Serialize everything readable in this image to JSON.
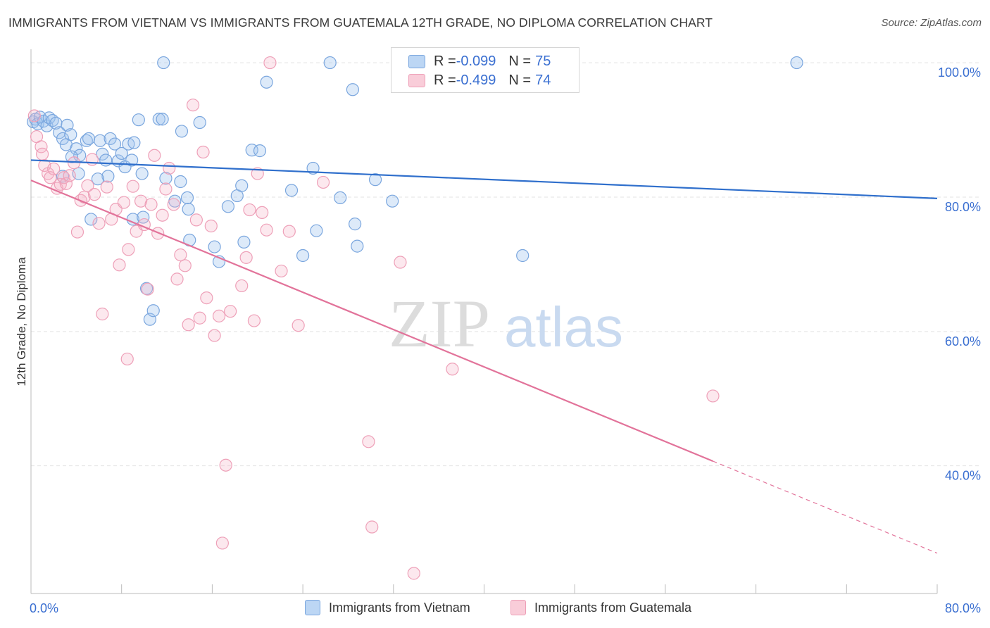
{
  "header": {
    "title": "IMMIGRANTS FROM VIETNAM VS IMMIGRANTS FROM GUATEMALA 12TH GRADE, NO DIPLOMA CORRELATION CHART",
    "source": "Source: ZipAtlas.com"
  },
  "watermark": {
    "zip": "ZIP",
    "atlas": "atlas"
  },
  "stats": [
    {
      "r_label": "R = ",
      "r_value": "-0.099",
      "n_label": "N = ",
      "n_value": "75",
      "color": "#9fc3ee"
    },
    {
      "r_label": "R = ",
      "r_value": "-0.499",
      "n_label": "N = ",
      "n_value": "74",
      "color": "#f5b3c6"
    }
  ],
  "colors": {
    "vietnam_fill": "rgba(158,195,238,0.35)",
    "vietnam_stroke": "#7aa6de",
    "vietnam_line": "#2f6fcc",
    "guatemala_fill": "rgba(245,179,198,0.30)",
    "guatemala_stroke": "#eea0b8",
    "guatemala_line": "#e2739a",
    "axis_text": "#3a6fd1",
    "grid": "#e3e3e3"
  },
  "chart_data": {
    "type": "scatter",
    "title": "IMMIGRANTS FROM VIETNAM VS IMMIGRANTS FROM GUATEMALA 12TH GRADE, NO DIPLOMA CORRELATION CHART",
    "xlabel": "",
    "ylabel": "12th Grade, No Diploma",
    "xlim": [
      0,
      80
    ],
    "ylim": [
      21,
      102
    ],
    "x_tick_labels": [
      "0.0%",
      "80.0%"
    ],
    "y_ticks": [
      40,
      60,
      80,
      100
    ],
    "y_tick_labels": [
      "40.0%",
      "60.0%",
      "80.0%",
      "100.0%"
    ],
    "grid": true,
    "legend": "bottom",
    "series": [
      {
        "name": "Immigrants from Vietnam",
        "trend": {
          "x": [
            0,
            80
          ],
          "y": [
            85.5,
            79.8
          ]
        },
        "points": [
          [
            0.2,
            91.2
          ],
          [
            0.4,
            91.6
          ],
          [
            0.6,
            90.9
          ],
          [
            0.8,
            91.9
          ],
          [
            1.1,
            91.3
          ],
          [
            1.4,
            90.6
          ],
          [
            1.6,
            91.8
          ],
          [
            1.9,
            91.4
          ],
          [
            2.2,
            91.0
          ],
          [
            2.5,
            89.6
          ],
          [
            2.8,
            88.7
          ],
          [
            3.2,
            90.7
          ],
          [
            3.5,
            89.3
          ],
          [
            3.1,
            87.8
          ],
          [
            4.0,
            87.2
          ],
          [
            4.3,
            86.2
          ],
          [
            4.9,
            88.4
          ],
          [
            5.1,
            88.7
          ],
          [
            5.3,
            76.7
          ],
          [
            4.2,
            83.5
          ],
          [
            6.3,
            86.4
          ],
          [
            6.1,
            88.4
          ],
          [
            6.8,
            83.1
          ],
          [
            7.0,
            88.7
          ],
          [
            7.4,
            87.9
          ],
          [
            7.7,
            85.4
          ],
          [
            8.0,
            86.5
          ],
          [
            8.3,
            84.5
          ],
          [
            8.6,
            87.9
          ],
          [
            8.9,
            85.5
          ],
          [
            9.1,
            88.1
          ],
          [
            9.0,
            76.7
          ],
          [
            9.5,
            91.5
          ],
          [
            9.8,
            83.5
          ],
          [
            9.9,
            77.0
          ],
          [
            10.2,
            66.4
          ],
          [
            10.5,
            61.8
          ],
          [
            10.8,
            63.1
          ],
          [
            11.3,
            91.6
          ],
          [
            11.6,
            91.6
          ],
          [
            11.9,
            82.8
          ],
          [
            11.7,
            100.0
          ],
          [
            12.7,
            79.4
          ],
          [
            13.3,
            89.8
          ],
          [
            13.2,
            82.3
          ],
          [
            13.8,
            79.9
          ],
          [
            13.9,
            78.2
          ],
          [
            14.0,
            73.6
          ],
          [
            14.9,
            91.1
          ],
          [
            16.2,
            72.6
          ],
          [
            16.6,
            70.4
          ],
          [
            17.4,
            78.6
          ],
          [
            18.2,
            80.2
          ],
          [
            18.6,
            81.7
          ],
          [
            18.8,
            73.3
          ],
          [
            19.5,
            87.0
          ],
          [
            20.2,
            86.9
          ],
          [
            20.8,
            97.1
          ],
          [
            23.0,
            81.0
          ],
          [
            24.0,
            71.3
          ],
          [
            24.9,
            84.3
          ],
          [
            25.2,
            75.0
          ],
          [
            26.4,
            100.0
          ],
          [
            27.3,
            79.9
          ],
          [
            28.4,
            96.0
          ],
          [
            28.6,
            76.0
          ],
          [
            28.8,
            72.7
          ],
          [
            30.4,
            82.6
          ],
          [
            31.9,
            79.4
          ],
          [
            43.4,
            71.3
          ],
          [
            67.6,
            100.0
          ],
          [
            2.8,
            83.1
          ],
          [
            5.9,
            82.7
          ],
          [
            3.6,
            86.0
          ],
          [
            6.6,
            85.5
          ]
        ]
      },
      {
        "name": "Immigrants from Guatemala",
        "trend": {
          "x": [
            0,
            60.2
          ],
          "y": [
            82.5,
            40.7
          ]
        },
        "trend_dashed": {
          "x": [
            60.2,
            80
          ],
          "y": [
            40.7,
            27.0
          ]
        },
        "points": [
          [
            0.3,
            92.1
          ],
          [
            0.5,
            89.0
          ],
          [
            0.9,
            87.5
          ],
          [
            1.2,
            84.7
          ],
          [
            1.5,
            83.5
          ],
          [
            1.7,
            82.9
          ],
          [
            2.0,
            84.2
          ],
          [
            2.3,
            81.3
          ],
          [
            2.6,
            81.9
          ],
          [
            2.9,
            82.9
          ],
          [
            3.1,
            82.0
          ],
          [
            3.4,
            83.2
          ],
          [
            3.8,
            85.1
          ],
          [
            4.1,
            74.8
          ],
          [
            4.4,
            79.5
          ],
          [
            4.7,
            80.0
          ],
          [
            5.0,
            81.7
          ],
          [
            5.4,
            85.6
          ],
          [
            5.6,
            80.4
          ],
          [
            6.0,
            76.1
          ],
          [
            6.3,
            62.6
          ],
          [
            6.7,
            81.5
          ],
          [
            7.1,
            76.7
          ],
          [
            7.5,
            78.2
          ],
          [
            7.8,
            69.9
          ],
          [
            8.2,
            79.2
          ],
          [
            8.5,
            55.9
          ],
          [
            8.6,
            72.2
          ],
          [
            9.0,
            81.6
          ],
          [
            9.3,
            74.9
          ],
          [
            9.7,
            79.4
          ],
          [
            10.0,
            75.9
          ],
          [
            10.3,
            66.3
          ],
          [
            10.6,
            78.9
          ],
          [
            10.9,
            86.2
          ],
          [
            11.2,
            74.6
          ],
          [
            11.6,
            77.3
          ],
          [
            11.9,
            81.2
          ],
          [
            12.2,
            84.3
          ],
          [
            12.6,
            78.9
          ],
          [
            12.9,
            67.8
          ],
          [
            13.2,
            71.4
          ],
          [
            13.6,
            69.8
          ],
          [
            13.9,
            61.0
          ],
          [
            14.3,
            93.7
          ],
          [
            14.6,
            76.6
          ],
          [
            14.9,
            62.0
          ],
          [
            15.2,
            86.7
          ],
          [
            15.5,
            65.0
          ],
          [
            15.9,
            75.7
          ],
          [
            16.2,
            59.4
          ],
          [
            16.6,
            62.3
          ],
          [
            16.9,
            28.5
          ],
          [
            17.2,
            40.1
          ],
          [
            17.6,
            63.0
          ],
          [
            18.6,
            66.8
          ],
          [
            19.0,
            71.0
          ],
          [
            19.3,
            78.1
          ],
          [
            19.7,
            61.6
          ],
          [
            20.0,
            83.5
          ],
          [
            20.4,
            77.7
          ],
          [
            20.8,
            75.1
          ],
          [
            21.1,
            100.0
          ],
          [
            22.1,
            69.0
          ],
          [
            22.8,
            74.9
          ],
          [
            23.6,
            60.9
          ],
          [
            25.8,
            82.2
          ],
          [
            29.8,
            43.6
          ],
          [
            30.1,
            30.9
          ],
          [
            32.6,
            70.3
          ],
          [
            33.8,
            24.0
          ],
          [
            37.2,
            54.4
          ],
          [
            60.2,
            50.4
          ],
          [
            1.0,
            86.4
          ]
        ]
      }
    ]
  },
  "legend": {
    "items": [
      {
        "label": "Immigrants from Vietnam",
        "color": "#9fc3ee"
      },
      {
        "label": "Immigrants from Guatemala",
        "color": "#f5b3c6"
      }
    ]
  }
}
